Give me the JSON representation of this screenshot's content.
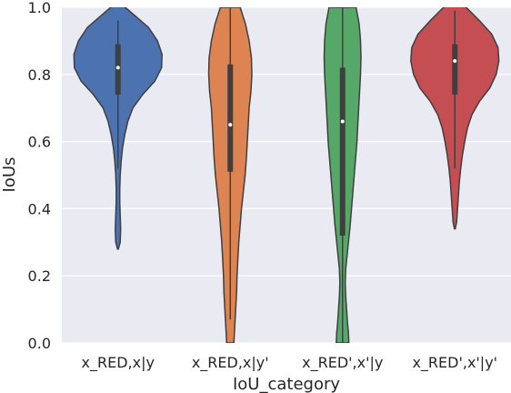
{
  "chart_data": {
    "type": "violin",
    "xlabel": "IoU_category",
    "ylabel": "IoUs",
    "ylim": [
      0.0,
      1.0
    ],
    "yticks": [
      "0.0",
      "0.2",
      "0.4",
      "0.6",
      "0.8",
      "1.0"
    ],
    "grid": true,
    "categories": [
      "x_RED,x|y",
      "x_RED,x|y'",
      "x_RED',x'|y",
      "x_RED',x'|y'"
    ],
    "series": [
      {
        "category": "x_RED,x|y",
        "color": "#4c72b0",
        "min": 0.29,
        "q1": 0.74,
        "median": 0.82,
        "q3": 0.89,
        "max": 0.96,
        "whisker_low": 0.52,
        "whisker_high": 0.96,
        "density": [
          [
            0.28,
            0.01
          ],
          [
            0.3,
            0.05
          ],
          [
            0.34,
            0.06
          ],
          [
            0.38,
            0.05
          ],
          [
            0.42,
            0.04
          ],
          [
            0.46,
            0.04
          ],
          [
            0.5,
            0.05
          ],
          [
            0.54,
            0.07
          ],
          [
            0.58,
            0.1
          ],
          [
            0.62,
            0.15
          ],
          [
            0.66,
            0.22
          ],
          [
            0.7,
            0.33
          ],
          [
            0.74,
            0.55
          ],
          [
            0.78,
            0.82
          ],
          [
            0.82,
            0.97
          ],
          [
            0.86,
            0.98
          ],
          [
            0.9,
            0.88
          ],
          [
            0.94,
            0.68
          ],
          [
            0.97,
            0.42
          ],
          [
            1.0,
            0.16
          ],
          [
            1.01,
            0.02
          ]
        ]
      },
      {
        "category": "x_RED,x|y'",
        "color": "#dd8452",
        "min": 0.0,
        "q1": 0.51,
        "median": 0.65,
        "q3": 0.83,
        "max": 1.0,
        "whisker_low": 0.07,
        "whisker_high": 1.0,
        "density": [
          [
            0.0,
            0.08
          ],
          [
            0.05,
            0.1
          ],
          [
            0.1,
            0.12
          ],
          [
            0.15,
            0.14
          ],
          [
            0.2,
            0.15
          ],
          [
            0.25,
            0.17
          ],
          [
            0.3,
            0.19
          ],
          [
            0.35,
            0.22
          ],
          [
            0.4,
            0.25
          ],
          [
            0.45,
            0.29
          ],
          [
            0.5,
            0.33
          ],
          [
            0.55,
            0.36
          ],
          [
            0.6,
            0.38
          ],
          [
            0.65,
            0.4
          ],
          [
            0.7,
            0.42
          ],
          [
            0.75,
            0.46
          ],
          [
            0.8,
            0.48
          ],
          [
            0.85,
            0.47
          ],
          [
            0.9,
            0.42
          ],
          [
            0.95,
            0.34
          ],
          [
            1.0,
            0.22
          ]
        ]
      },
      {
        "category": "x_RED',x'|y",
        "color": "#55a868",
        "min": 0.0,
        "q1": 0.32,
        "median": 0.66,
        "q3": 0.82,
        "max": 1.0,
        "whisker_low": 0.0,
        "whisker_high": 1.0,
        "density": [
          [
            0.0,
            0.14
          ],
          [
            0.03,
            0.13
          ],
          [
            0.06,
            0.11
          ],
          [
            0.1,
            0.09
          ],
          [
            0.14,
            0.07
          ],
          [
            0.18,
            0.06
          ],
          [
            0.22,
            0.07
          ],
          [
            0.26,
            0.1
          ],
          [
            0.3,
            0.13
          ],
          [
            0.35,
            0.17
          ],
          [
            0.4,
            0.2
          ],
          [
            0.45,
            0.23
          ],
          [
            0.5,
            0.26
          ],
          [
            0.55,
            0.29
          ],
          [
            0.6,
            0.32
          ],
          [
            0.65,
            0.34
          ],
          [
            0.7,
            0.36
          ],
          [
            0.75,
            0.38
          ],
          [
            0.8,
            0.4
          ],
          [
            0.85,
            0.41
          ],
          [
            0.9,
            0.4
          ],
          [
            0.95,
            0.37
          ],
          [
            1.0,
            0.3
          ]
        ]
      },
      {
        "category": "x_RED',x'|y'",
        "color": "#c44e52",
        "min": 0.34,
        "q1": 0.74,
        "median": 0.84,
        "q3": 0.89,
        "max": 0.99,
        "whisker_low": 0.52,
        "whisker_high": 0.99,
        "density": [
          [
            0.34,
            0.01
          ],
          [
            0.36,
            0.04
          ],
          [
            0.4,
            0.06
          ],
          [
            0.44,
            0.08
          ],
          [
            0.48,
            0.1
          ],
          [
            0.52,
            0.13
          ],
          [
            0.56,
            0.17
          ],
          [
            0.6,
            0.22
          ],
          [
            0.64,
            0.28
          ],
          [
            0.68,
            0.38
          ],
          [
            0.72,
            0.55
          ],
          [
            0.76,
            0.78
          ],
          [
            0.8,
            0.92
          ],
          [
            0.84,
            0.98
          ],
          [
            0.88,
            0.96
          ],
          [
            0.92,
            0.82
          ],
          [
            0.96,
            0.55
          ],
          [
            1.0,
            0.25
          ],
          [
            1.02,
            0.05
          ]
        ]
      }
    ]
  }
}
